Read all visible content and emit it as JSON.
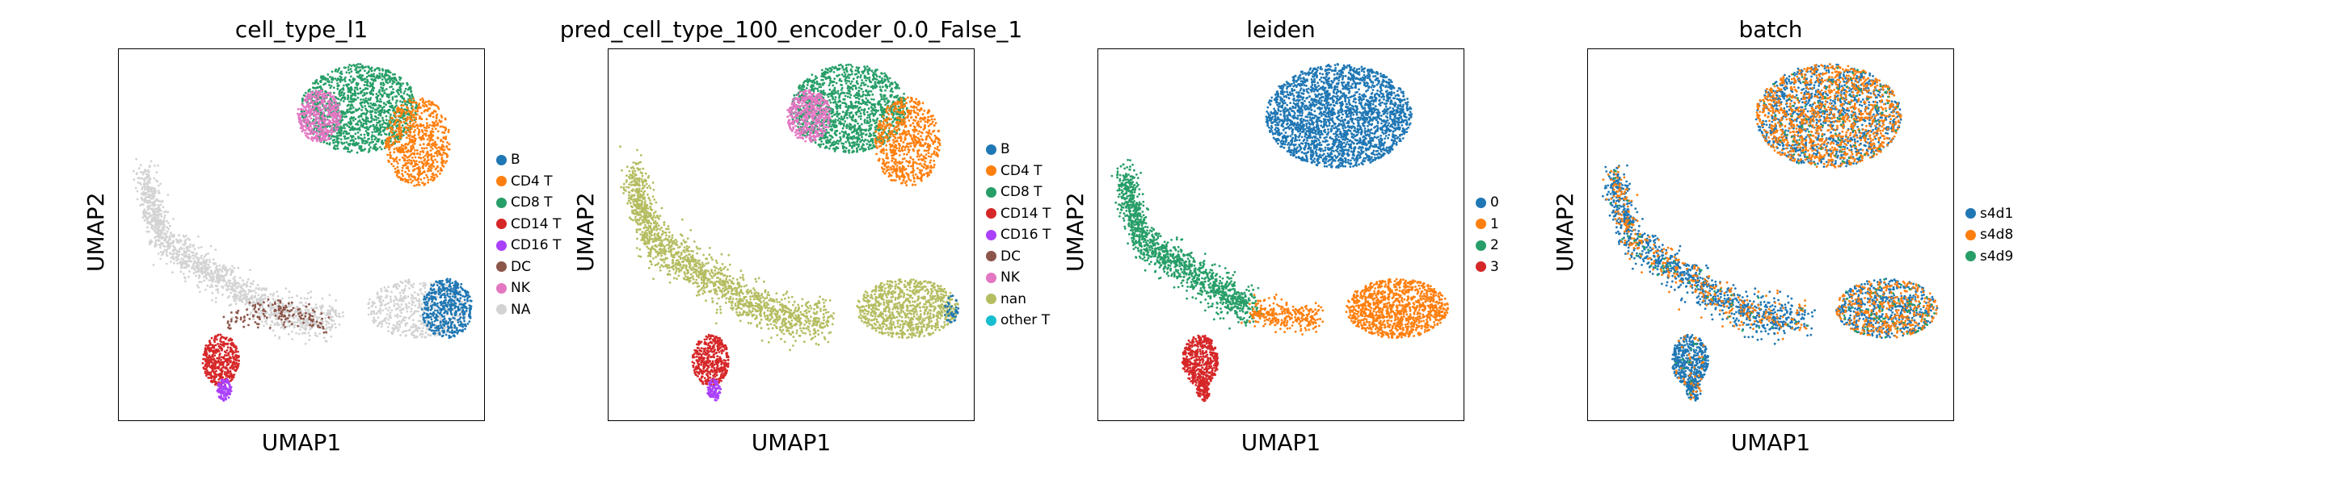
{
  "chart_data": [
    {
      "type": "scatter",
      "title": "cell_type_l1",
      "xlabel": "UMAP1",
      "ylabel": "UMAP2",
      "grid": false,
      "legend_position": "right",
      "legend": [
        {
          "label": "B",
          "color": "#1f77b4"
        },
        {
          "label": "CD4 T",
          "color": "#ff7f0e"
        },
        {
          "label": "CD8 T",
          "color": "#279e68"
        },
        {
          "label": "CD14 T",
          "color": "#d62728"
        },
        {
          "label": "CD16 T",
          "color": "#aa40fc"
        },
        {
          "label": "DC",
          "color": "#8c564b"
        },
        {
          "label": "NK",
          "color": "#e377c2"
        },
        {
          "label": "NA",
          "color": "#d3d3d3"
        }
      ]
    },
    {
      "type": "scatter",
      "title": "pred_cell_type_100_encoder_0.0_False_1",
      "xlabel": "UMAP1",
      "ylabel": "UMAP2",
      "grid": false,
      "legend_position": "right",
      "legend": [
        {
          "label": "B",
          "color": "#1f77b4"
        },
        {
          "label": "CD4 T",
          "color": "#ff7f0e"
        },
        {
          "label": "CD8 T",
          "color": "#279e68"
        },
        {
          "label": "CD14 T",
          "color": "#d62728"
        },
        {
          "label": "CD16 T",
          "color": "#aa40fc"
        },
        {
          "label": "DC",
          "color": "#8c564b"
        },
        {
          "label": "NK",
          "color": "#e377c2"
        },
        {
          "label": "nan",
          "color": "#b5bd61"
        },
        {
          "label": "other T",
          "color": "#17becf"
        }
      ]
    },
    {
      "type": "scatter",
      "title": "leiden",
      "xlabel": "UMAP1",
      "ylabel": "UMAP2",
      "grid": false,
      "legend_position": "right",
      "legend": [
        {
          "label": "0",
          "color": "#1f77b4"
        },
        {
          "label": "1",
          "color": "#ff7f0e"
        },
        {
          "label": "2",
          "color": "#279e68"
        },
        {
          "label": "3",
          "color": "#d62728"
        }
      ]
    },
    {
      "type": "scatter",
      "title": "batch",
      "xlabel": "UMAP1",
      "ylabel": "UMAP2",
      "grid": false,
      "legend_position": "right",
      "legend": [
        {
          "label": "s4d1",
          "color": "#1f77b4"
        },
        {
          "label": "s4d8",
          "color": "#ff7f0e"
        },
        {
          "label": "s4d9",
          "color": "#279e68"
        }
      ]
    }
  ]
}
